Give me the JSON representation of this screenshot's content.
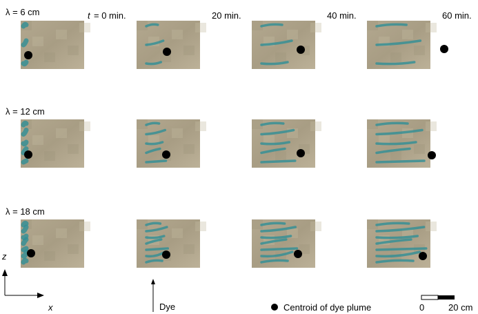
{
  "row_labels": [
    "λ = 6 cm",
    "λ = 12 cm",
    "λ = 18 cm"
  ],
  "time_variable": "t",
  "time_labels": [
    "= 0 min.",
    "20 min.",
    "40 min.",
    "60 min."
  ],
  "axes": {
    "z": "z",
    "x": "x"
  },
  "legend": {
    "dye": "Dye",
    "centroid": "Centroid of dye plume"
  },
  "scale_bar": {
    "start": "0",
    "end": "20 cm"
  }
}
